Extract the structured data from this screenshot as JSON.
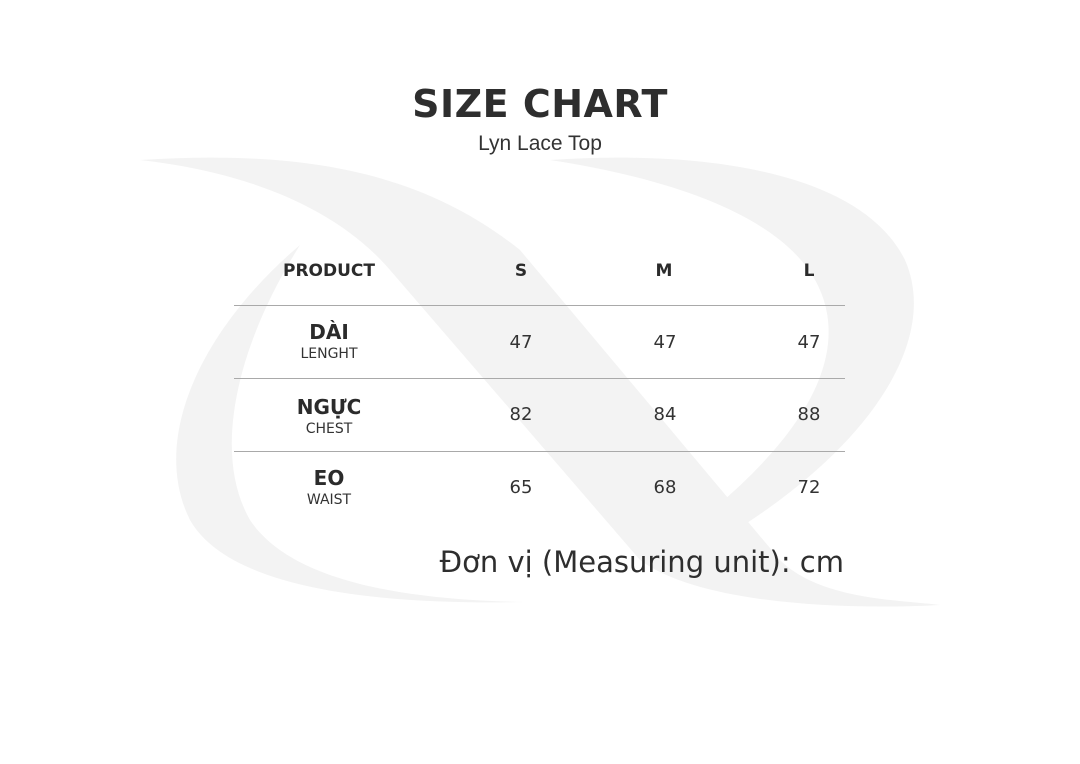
{
  "header": {
    "title": "SIZE CHART",
    "subtitle": "Lyn Lace Top"
  },
  "table": {
    "columns": [
      "PRODUCT",
      "S",
      "M",
      "L"
    ],
    "rows": [
      {
        "label": "DÀI",
        "sublabel": "LENGHT",
        "values": [
          "47",
          "47",
          "47"
        ]
      },
      {
        "label": "NGỰC",
        "sublabel": "CHEST",
        "values": [
          "82",
          "84",
          "88"
        ]
      },
      {
        "label": "EO",
        "sublabel": "WAIST",
        "values": [
          "65",
          "68",
          "72"
        ]
      }
    ]
  },
  "footer": {
    "unit_note": "Đơn vị (Measuring unit): cm"
  },
  "colors": {
    "text": "#2e2e2e",
    "rule": "#a9a9a9",
    "watermark": "#f3f3f3"
  }
}
